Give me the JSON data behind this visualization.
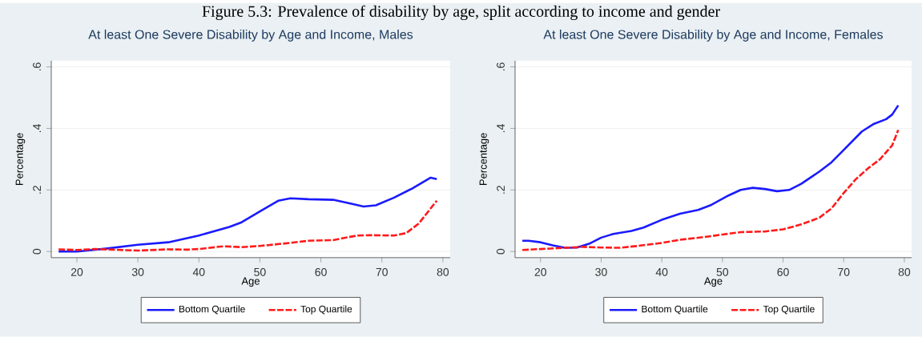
{
  "chart_data": [
    {
      "type": "line",
      "title": "At least One Severe Disability by Age and Income, Males",
      "xlabel": "Age",
      "ylabel": "Percentage",
      "annotations": [
        "Figure 5.3: Prevalence of disability by age, split according to income and gender"
      ],
      "xlim": [
        15.8,
        81.2
      ],
      "ylim": [
        -0.02,
        0.62
      ],
      "xticks": [
        20,
        30,
        40,
        50,
        60,
        70,
        80
      ],
      "yticks": [
        0,
        {
          "value": 0.2,
          "label": ".2"
        },
        {
          "value": 0.4,
          "label": ".4"
        },
        {
          "value": 0.6,
          "label": ".6"
        }
      ],
      "grid": "y",
      "legend": "bottom",
      "marker": "none",
      "series": [
        {
          "name": "Bottom Quartile",
          "color": "#1a1aff",
          "line_style": "solid",
          "x": [
            17,
            20,
            25,
            30,
            35,
            40,
            45,
            47,
            50,
            53,
            55,
            58,
            62,
            65,
            67,
            69,
            72,
            75,
            78,
            79
          ],
          "values": [
            0.0,
            0.0,
            0.01,
            0.022,
            0.03,
            0.052,
            0.08,
            0.095,
            0.13,
            0.165,
            0.173,
            0.17,
            0.168,
            0.155,
            0.146,
            0.15,
            0.175,
            0.205,
            0.24,
            0.235
          ]
        },
        {
          "name": "Top Quartile",
          "color": "#ff1a1a",
          "line_style": "dashed",
          "x": [
            17,
            20,
            23,
            26,
            30,
            35,
            38,
            40,
            44,
            47,
            50,
            55,
            58,
            62,
            66,
            68,
            72,
            74,
            76,
            79
          ],
          "values": [
            0.007,
            0.005,
            0.008,
            0.006,
            0.003,
            0.007,
            0.006,
            0.008,
            0.017,
            0.014,
            0.018,
            0.028,
            0.035,
            0.037,
            0.052,
            0.053,
            0.052,
            0.06,
            0.09,
            0.165
          ]
        }
      ]
    },
    {
      "type": "line",
      "title": "At least One Severe Disability by Age and Income, Females",
      "xlabel": "Age",
      "ylabel": "Percentage",
      "xlim": [
        15.8,
        81.2
      ],
      "ylim": [
        -0.02,
        0.62
      ],
      "xticks": [
        20,
        30,
        40,
        50,
        60,
        70,
        80
      ],
      "yticks": [
        0,
        {
          "value": 0.2,
          "label": ".2"
        },
        {
          "value": 0.4,
          "label": ".4"
        },
        {
          "value": 0.6,
          "label": ".6"
        }
      ],
      "grid": "y",
      "legend": "bottom",
      "marker": "none",
      "series": [
        {
          "name": "Bottom Quartile",
          "color": "#1a1aff",
          "line_style": "solid",
          "x": [
            17,
            18,
            20,
            22,
            24,
            26,
            28,
            30,
            32,
            35,
            37,
            40,
            43,
            46,
            48,
            51,
            53,
            55,
            57,
            59,
            61,
            63,
            66,
            68,
            70,
            73,
            75,
            77,
            78,
            79
          ],
          "values": [
            0.035,
            0.035,
            0.03,
            0.02,
            0.012,
            0.013,
            0.025,
            0.045,
            0.057,
            0.067,
            0.078,
            0.103,
            0.123,
            0.135,
            0.15,
            0.182,
            0.2,
            0.207,
            0.203,
            0.196,
            0.2,
            0.22,
            0.26,
            0.29,
            0.33,
            0.39,
            0.415,
            0.43,
            0.445,
            0.475
          ]
        },
        {
          "name": "Top Quartile",
          "color": "#ff1a1a",
          "line_style": "dashed",
          "x": [
            17,
            20,
            24,
            27,
            30,
            33,
            36,
            40,
            43,
            47,
            50,
            53,
            57,
            60,
            63,
            66,
            68,
            70,
            72,
            74,
            76,
            78,
            79
          ],
          "values": [
            0.005,
            0.008,
            0.012,
            0.015,
            0.013,
            0.012,
            0.018,
            0.028,
            0.038,
            0.047,
            0.055,
            0.063,
            0.065,
            0.072,
            0.088,
            0.11,
            0.14,
            0.19,
            0.235,
            0.27,
            0.3,
            0.345,
            0.395
          ]
        }
      ]
    }
  ]
}
